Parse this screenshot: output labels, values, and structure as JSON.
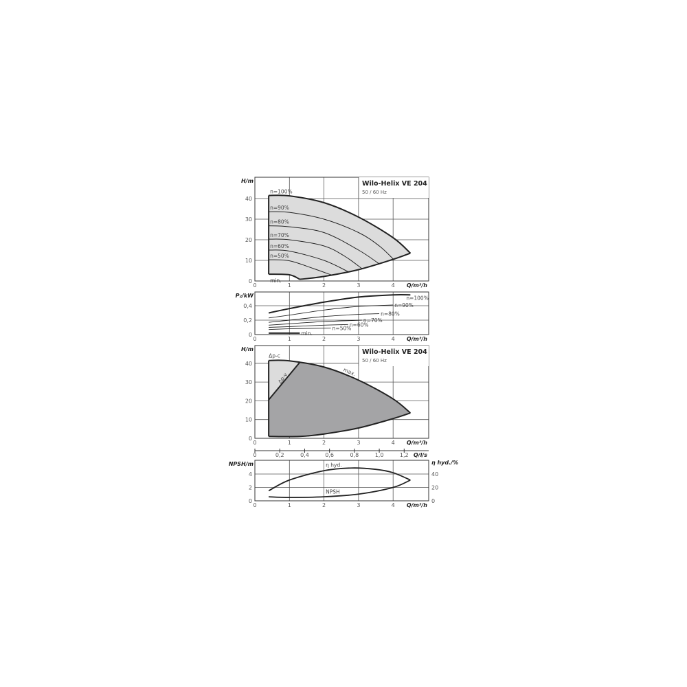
{
  "chart_data": [
    {
      "type": "line",
      "title": "Wilo-Helix VE 204",
      "subtitle": "50 / 60 Hz",
      "xlabel": "Q/m³/h",
      "ylabel": "H/m",
      "xlim": [
        0,
        5
      ],
      "ylim": [
        0,
        45
      ],
      "xticks": [
        "0",
        "1",
        "2",
        "3",
        "4"
      ],
      "yticks": [
        "0",
        "10",
        "20",
        "30",
        "40"
      ],
      "grid": true,
      "series": [
        {
          "name": "n=100%",
          "x": [
            0.4,
            1,
            2,
            3,
            4,
            4.5
          ],
          "y": [
            41.5,
            41.3,
            38,
            31,
            21,
            13.5
          ]
        },
        {
          "name": "n=90%",
          "x": [
            0.4,
            1,
            2,
            3,
            3.6,
            4
          ],
          "y": [
            33.6,
            33.3,
            30,
            23.5,
            17,
            10.7
          ]
        },
        {
          "name": "n=80%",
          "x": [
            0.4,
            1,
            2,
            3,
            3.6
          ],
          "y": [
            26.8,
            26.3,
            23.5,
            15,
            8.3
          ]
        },
        {
          "name": "n=70%",
          "x": [
            0.4,
            1,
            2,
            2.6,
            3.1
          ],
          "y": [
            20.3,
            20,
            17,
            12,
            6
          ]
        },
        {
          "name": "n=60%",
          "x": [
            0.4,
            1,
            2,
            2.7
          ],
          "y": [
            15,
            14.5,
            10,
            4.5
          ]
        },
        {
          "name": "n=50%",
          "x": [
            0.4,
            1,
            1.7,
            2.2
          ],
          "y": [
            10.3,
            9.8,
            6,
            3
          ]
        },
        {
          "name": "min.",
          "x": [
            0.4,
            1,
            1.3
          ],
          "y": [
            3.3,
            3,
            0.8
          ]
        },
        {
          "name": "",
          "x": [
            1.3,
            2,
            3,
            4,
            4.5
          ],
          "y": [
            0.8,
            2.2,
            5.5,
            10.5,
            13.5
          ]
        }
      ]
    },
    {
      "type": "line",
      "xlabel": "Q/m³/h",
      "ylabel": "P₂/kW",
      "xlim": [
        0,
        5
      ],
      "ylim": [
        0,
        0.6
      ],
      "xticks": [
        "0",
        "1",
        "2",
        "3",
        "4"
      ],
      "yticks": [
        "0",
        "0,2",
        "0,4"
      ],
      "grid": true,
      "series": [
        {
          "name": "n=100%",
          "x": [
            0.4,
            1,
            2,
            3,
            4,
            4.5
          ],
          "y": [
            0.3,
            0.36,
            0.45,
            0.52,
            0.55,
            0.55
          ]
        },
        {
          "name": "n=90%",
          "x": [
            0.4,
            1,
            2,
            3,
            4
          ],
          "y": [
            0.23,
            0.27,
            0.34,
            0.39,
            0.41
          ]
        },
        {
          "name": "n=80%",
          "x": [
            0.4,
            1,
            2,
            3,
            3.6
          ],
          "y": [
            0.17,
            0.2,
            0.25,
            0.28,
            0.29
          ]
        },
        {
          "name": "n=70%",
          "x": [
            0.4,
            1,
            2,
            3.1
          ],
          "y": [
            0.13,
            0.15,
            0.18,
            0.2
          ]
        },
        {
          "name": "n=60%",
          "x": [
            0.4,
            1,
            2,
            2.7
          ],
          "y": [
            0.1,
            0.11,
            0.13,
            0.14
          ]
        },
        {
          "name": "n=50%",
          "x": [
            0.4,
            1,
            2.2
          ],
          "y": [
            0.07,
            0.08,
            0.09
          ]
        },
        {
          "name": "min.",
          "x": [
            0.4,
            1.3
          ],
          "y": [
            0.02,
            0.02
          ]
        }
      ]
    },
    {
      "type": "area",
      "title": "Wilo-Helix VE 204",
      "subtitle": "50 / 60 Hz",
      "xlabel": "Q/m³/h",
      "ylabel": "H/m",
      "xlim": [
        0,
        5
      ],
      "ylim": [
        0,
        45
      ],
      "xticks": [
        "0",
        "1",
        "2",
        "3",
        "4"
      ],
      "yticks": [
        "0",
        "10",
        "20",
        "30",
        "40"
      ],
      "grid": true,
      "x2label": "Q/l/s",
      "x2ticks": [
        "0",
        "0,2",
        "0,4",
        "0,6",
        "0,8",
        "1,0",
        "1,2"
      ],
      "series": [
        {
          "name": "max.",
          "x": [
            0.4,
            1,
            2,
            3,
            4,
            4.5
          ],
          "y": [
            41.5,
            41.3,
            38,
            31,
            21,
            13.5
          ]
        },
        {
          "name": "",
          "x": [
            0.4,
            1.3,
            2,
            3,
            4,
            4.5
          ],
          "y": [
            1,
            1,
            2.3,
            5.5,
            10.5,
            13.5
          ]
        },
        {
          "name": "Δp-v",
          "x": [
            0.4,
            1.3
          ],
          "y": [
            20.5,
            40.5
          ]
        },
        {
          "name": "Δp-c",
          "x": [
            0.4,
            1.3
          ],
          "y": [
            41.5,
            41.3
          ]
        }
      ]
    },
    {
      "type": "line",
      "xlabel": "Q/m³/h",
      "ylabel": "NPSH/m",
      "y2label": "η hyd./%",
      "xlim": [
        0,
        5
      ],
      "ylim": [
        0,
        6
      ],
      "y2lim": [
        0,
        60
      ],
      "xticks": [
        "0",
        "1",
        "2",
        "3",
        "4"
      ],
      "yticks": [
        "0",
        "2",
        "4"
      ],
      "y2ticks": [
        "0",
        "20",
        "40"
      ],
      "grid": true,
      "series": [
        {
          "name": "NPSH",
          "axis": "left",
          "x": [
            0.4,
            1,
            2,
            3,
            4,
            4.5
          ],
          "y": [
            0.6,
            0.5,
            0.6,
            1,
            2,
            3.1
          ]
        },
        {
          "name": "η hyd.",
          "axis": "right",
          "x": [
            0.4,
            1,
            2,
            2.8,
            3.5,
            4,
            4.5
          ],
          "y": [
            15,
            31,
            45,
            49,
            47,
            42,
            31
          ]
        }
      ]
    }
  ],
  "colors": {
    "fill_light": "#dcdcdc",
    "fill_dark": "#a4a4a6",
    "line": "#222222"
  }
}
